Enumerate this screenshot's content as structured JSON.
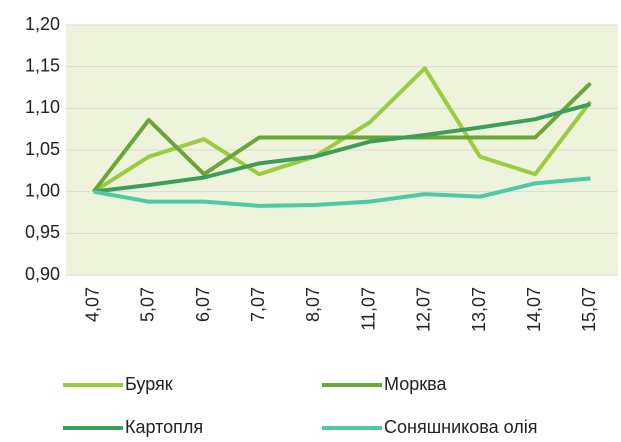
{
  "chart_data": {
    "type": "line",
    "categories": [
      "4,07",
      "5,07",
      "6,07",
      "7,07",
      "8,07",
      "11,07",
      "12,07",
      "13,07",
      "14,07",
      "15,07"
    ],
    "series": [
      {
        "name": "Буряк",
        "color": "#9bcc3f",
        "values": [
          1.0,
          1.042,
          1.063,
          1.021,
          1.042,
          1.083,
          1.148,
          1.042,
          1.021,
          1.108
        ]
      },
      {
        "name": "Морква",
        "color": "#6aa637",
        "values": [
          1.0,
          1.086,
          1.021,
          1.065,
          1.065,
          1.065,
          1.065,
          1.065,
          1.065,
          1.13
        ]
      },
      {
        "name": "Картопля",
        "color": "#3d9e5a",
        "values": [
          1.0,
          1.008,
          1.017,
          1.034,
          1.042,
          1.06,
          1.068,
          1.077,
          1.087,
          1.105
        ]
      },
      {
        "name": "Соняшникова олія",
        "color": "#4dc9a5",
        "values": [
          1.0,
          0.988,
          0.988,
          0.983,
          0.984,
          0.988,
          0.997,
          0.994,
          1.01,
          1.016
        ]
      }
    ],
    "ylim": [
      0.9,
      1.2
    ],
    "yticks": [
      {
        "value": 0.9,
        "label": "0,90"
      },
      {
        "value": 0.95,
        "label": "0,95"
      },
      {
        "value": 1.0,
        "label": "1,00"
      },
      {
        "value": 1.05,
        "label": "1,05"
      },
      {
        "value": 1.1,
        "label": "1,10"
      },
      {
        "value": 1.15,
        "label": "1,15"
      },
      {
        "value": 1.2,
        "label": "1,20"
      }
    ],
    "grid": true,
    "plot_background": "#eef4dc"
  }
}
